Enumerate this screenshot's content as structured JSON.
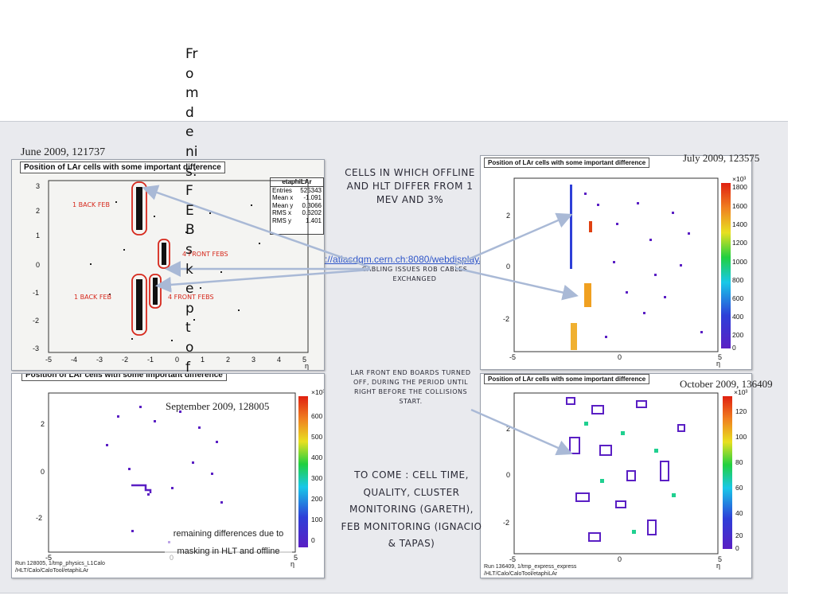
{
  "url": "http://atlasdqm.cern.ch:8080/webdisplay/tier0/",
  "vertical_text": "From denis: FEBs kept of",
  "panels": {
    "top_left": {
      "date": "June 2009, 121737",
      "title": "Position of LAr cells with some important difference",
      "stats": {
        "name": "etaphiLAr",
        "rows": [
          {
            "k": "Entries",
            "v": "525343"
          },
          {
            "k": "Mean x",
            "v": "-1.091"
          },
          {
            "k": "Mean y",
            "v": "0.3066"
          },
          {
            "k": "RMS x",
            "v": "0.6202"
          },
          {
            "k": "RMS y",
            "v": "1.401"
          }
        ]
      },
      "x_ticks": [
        "-5",
        "-4",
        "-3",
        "-2",
        "-1",
        "0",
        "1",
        "2",
        "3",
        "4",
        "5"
      ],
      "y_ticks": [
        "3",
        "2",
        "1",
        "0",
        "-1",
        "-2",
        "-3"
      ],
      "x_label": "η",
      "annotations": [
        "1 BACK FEB",
        "4 FRONT FEBS",
        "1 BACK FEB",
        "4 FRONT FEBS"
      ]
    },
    "top_right": {
      "date": "July 2009, 123575",
      "title": "Position of LAr cells with some important difference",
      "scale_exp": "×10³",
      "colorbar_ticks": [
        "1800",
        "1600",
        "1400",
        "1200",
        "1000",
        "800",
        "600",
        "400",
        "200",
        "0"
      ],
      "x_ticks": [
        "-5",
        "0",
        "5"
      ],
      "y_ticks": [
        "2",
        "0",
        "-2"
      ],
      "x_label": "η"
    },
    "bottom_left": {
      "date": "September 2009, 128005",
      "title": "Position of LAr cells with some important difference",
      "scale_exp": "×10³",
      "colorbar_ticks": [
        "600",
        "500",
        "400",
        "300",
        "200",
        "100",
        "0"
      ],
      "x_ticks": [
        "-5",
        "0",
        "5"
      ],
      "y_ticks": [
        "2",
        "0",
        "-2"
      ],
      "x_label": "η",
      "footer": [
        "Run 128005, 1/tmp_physics_L1Calo",
        "/HLT/Calo/CaloTool/etaphiLAr"
      ],
      "note": "remaining differences due to masking in HLT and offline"
    },
    "bottom_right": {
      "date": "October 2009, 136409",
      "title": "Position of LAr cells with some important difference",
      "scale_exp": "×10³",
      "colorbar_ticks": [
        "120",
        "100",
        "80",
        "60",
        "40",
        "20",
        "0"
      ],
      "x_ticks": [
        "-5",
        "0",
        "5"
      ],
      "y_ticks": [
        "2",
        "0",
        "-2"
      ],
      "x_label": "η",
      "footer": [
        "Run 136409, 1/tmp_express_express",
        "/HLT/Calo/CaloTool/etaphiLAr"
      ]
    }
  },
  "center_notes": {
    "cells": "CELLS IN WHICH OFFLINE AND HLT DIFFER FROM 1 MEV AND 3%",
    "cabling": "CABLING ISSUES ROB CABLES EXCHANGED",
    "boards": "LAR FRONT END BOARDS TURNED OFF, DURING THE PERIOD UNTIL RIGHT BEFORE THE COLLISIONS START.",
    "to_come": "TO COME : CELL TIME, QUALITY, CLUSTER MONITORING (GARETH), FEB MONITORING (IGNACIO & TAPAS)"
  },
  "colors": {
    "annotation_red": "#d6281c",
    "arrow": "#a9b9d6",
    "hist_purple": "#5a1fc4",
    "hist_blue": "#2e3fd8"
  }
}
